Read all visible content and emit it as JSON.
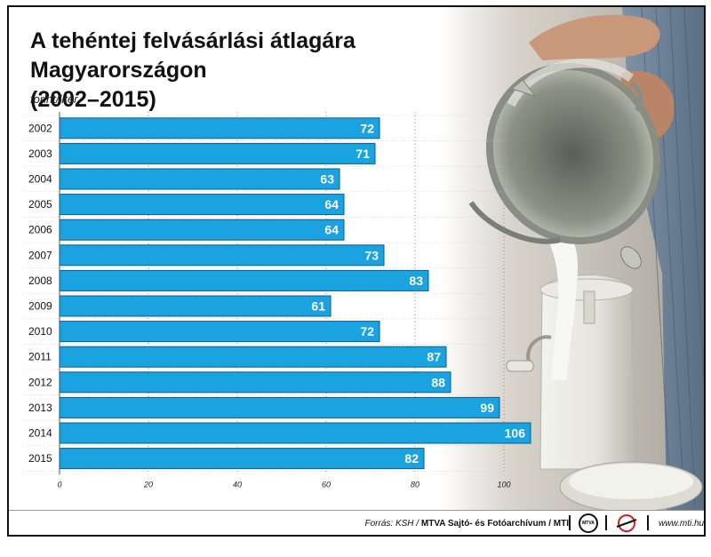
{
  "header": {
    "title_line1": "A tehéntej felvásárlási átlagára Magyarországon",
    "title_line2": "(2002–2015)",
    "unit": "forint/liter"
  },
  "chart_data": {
    "type": "bar",
    "orientation": "horizontal",
    "title": "A tehéntej felvásárlási átlagára Magyarországon (2002–2015)",
    "ylabel": "forint/liter",
    "categories": [
      "2002",
      "2003",
      "2004",
      "2005",
      "2006",
      "2007",
      "2008",
      "2009",
      "2010",
      "2011",
      "2012",
      "2013",
      "2014",
      "2015"
    ],
    "values": [
      72,
      71,
      63,
      64,
      64,
      73,
      83,
      61,
      72,
      87,
      88,
      99,
      106,
      82
    ],
    "xlim": [
      0,
      100
    ],
    "xticks": [
      0,
      20,
      40,
      60,
      80,
      100
    ],
    "bar_color": "#1aa3e0",
    "grid": "vertical dotted"
  },
  "footer": {
    "source_prefix": "Forrás: KSH / ",
    "source_bold": "MTVA Sajtó- és Fotóarchívum / MTI",
    "mtva_logo_text": "MTVA",
    "website": "www.mti.hu"
  }
}
